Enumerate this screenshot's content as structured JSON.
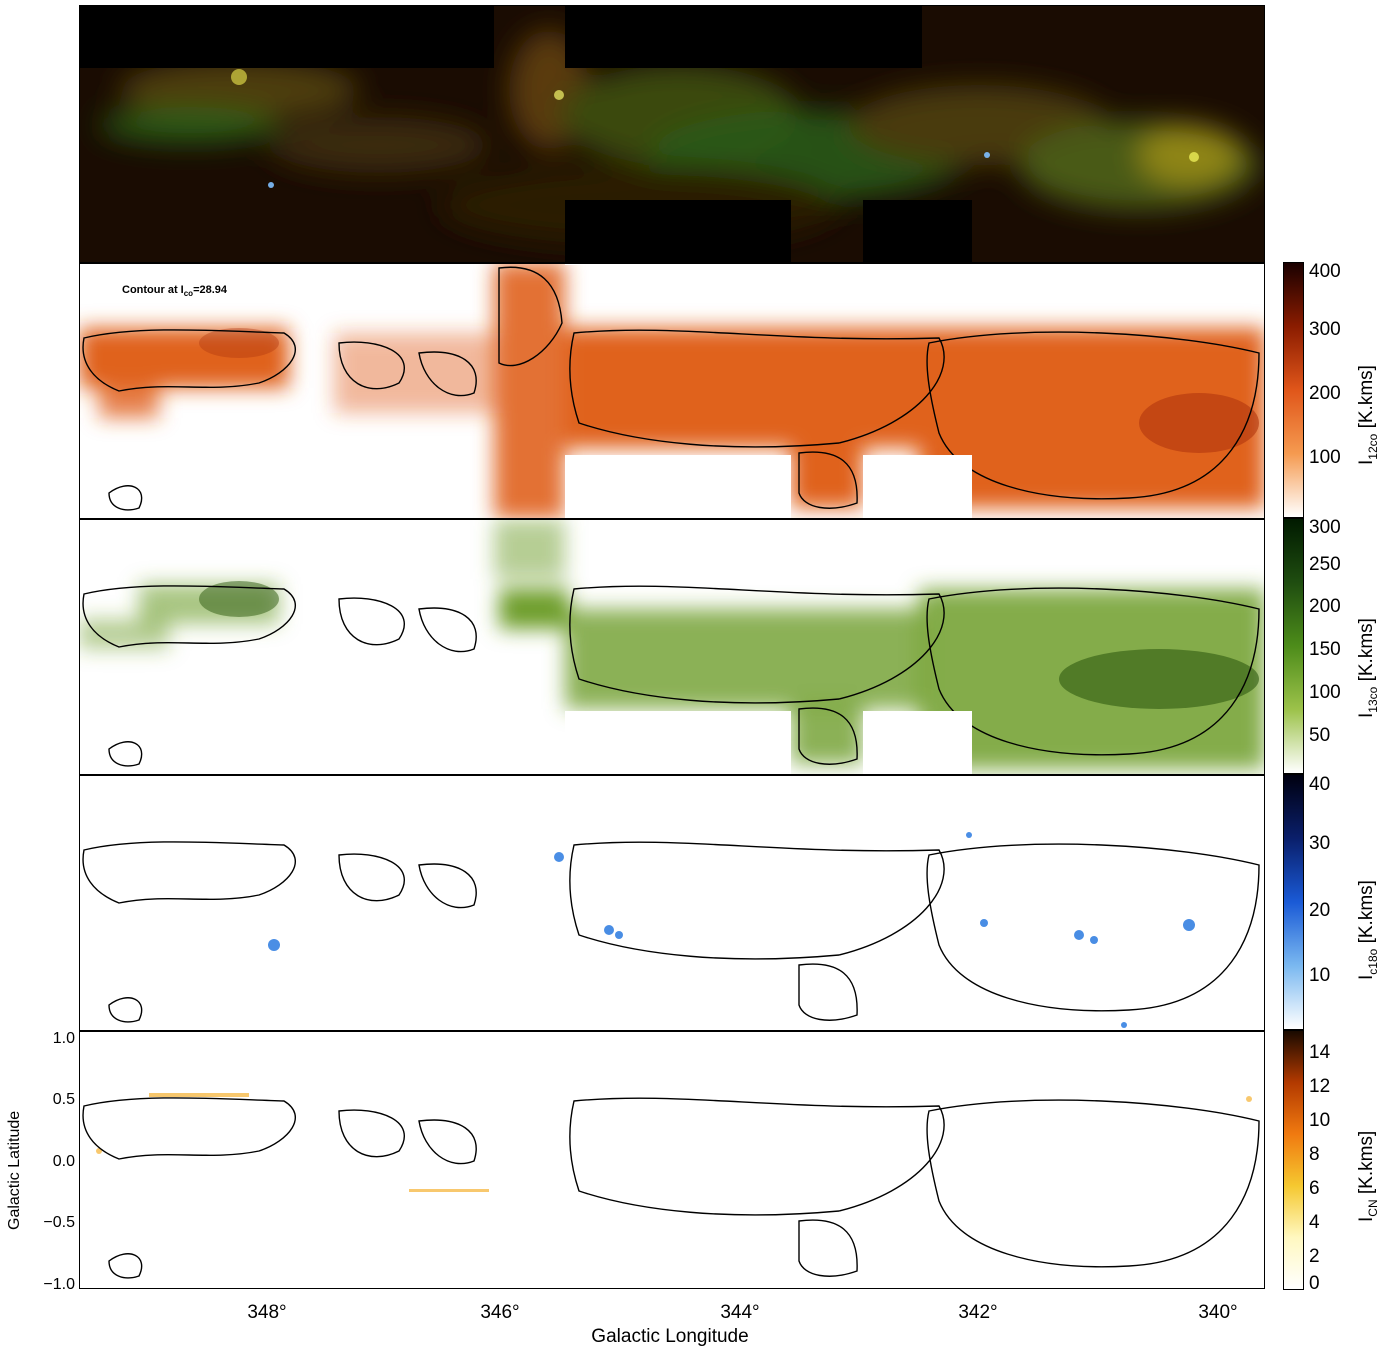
{
  "annotation": "Contour at I",
  "annotation_sub": "co",
  "annotation_val": "=28.94",
  "colorbars": [
    {
      "ticks": [
        "400",
        "300",
        "200",
        "100"
      ],
      "label": "I",
      "sub": "12co",
      "unit": " [K.kms]",
      "colors": [
        "#1a0000",
        "#8b1c00",
        "#e0561a",
        "#f59a50",
        "#ffffff"
      ]
    },
    {
      "ticks": [
        "300",
        "250",
        "200",
        "150",
        "100",
        "50"
      ],
      "label": "I",
      "sub": "13co",
      "unit": " [K.kms]",
      "colors": [
        "#001a00",
        "#1f4d10",
        "#4d8c1a",
        "#9cc24a",
        "#ffffff"
      ]
    },
    {
      "ticks": [
        "40",
        "30",
        "20",
        "10"
      ],
      "label": "I",
      "sub": "c18o",
      "unit": " [K.kms]",
      "colors": [
        "#000010",
        "#0a1f6b",
        "#1a5ad6",
        "#7ab8f0",
        "#ffffff"
      ]
    },
    {
      "ticks": [
        "14",
        "12",
        "10",
        "8",
        "6",
        "4",
        "2",
        "0"
      ],
      "label": "I",
      "sub": "CN",
      "unit": " [K.kms]",
      "colors": [
        "#1a0a00",
        "#b33a00",
        "#f07a10",
        "#f5c830",
        "#fff8c0",
        "#ffffff"
      ]
    }
  ],
  "x_axis": {
    "label": "Galactic Longitude",
    "ticks": [
      "348°",
      "346°",
      "344°",
      "342°",
      "340°"
    ]
  },
  "y_axis": {
    "label": "Galactic Latitude",
    "ticks": [
      "1.0",
      "0.5",
      "0.0",
      "−0.5",
      "−1.0"
    ]
  },
  "panel_colors": {
    "composite": [
      "#0b0500",
      "#3a2a0a",
      "#2f5a12",
      "#7a7a14",
      "#1a3a10"
    ],
    "co12": "#e0621f",
    "co13": "#6e9e2c",
    "c18o": "#2a7ae0",
    "cn": "#f5b030"
  }
}
